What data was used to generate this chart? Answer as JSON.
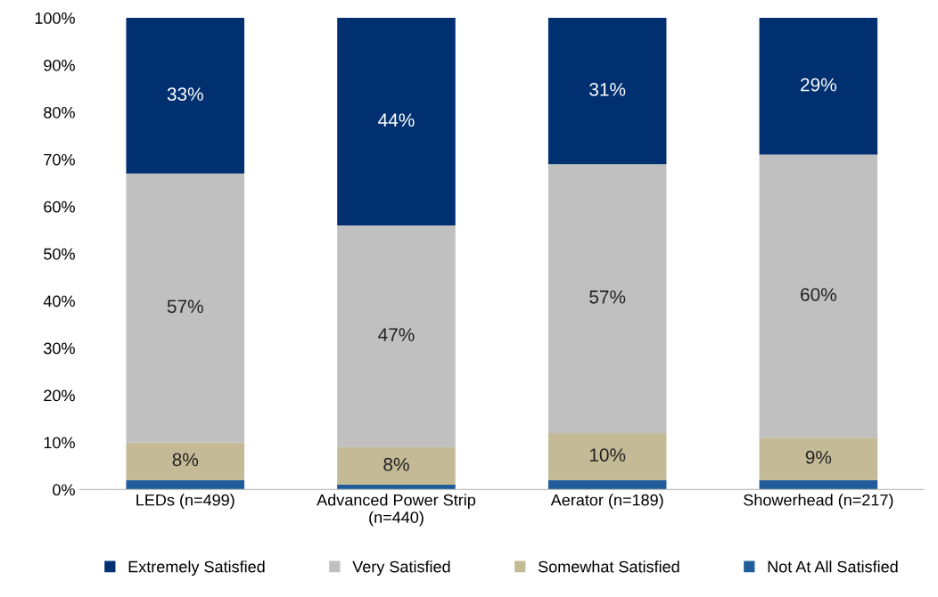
{
  "chart_data": {
    "type": "bar",
    "stacked": true,
    "categories": [
      "LEDs (n=499)",
      "Advanced Power Strip\n(n=440)",
      "Aerator (n=189)",
      "Showerhead (n=217)"
    ],
    "series": [
      {
        "name": "Not At All Satisfied",
        "color": "#1f5c99",
        "values": [
          2,
          1,
          2,
          2
        ],
        "value_labels": [
          null,
          null,
          null,
          null
        ]
      },
      {
        "name": "Somewhat Satisfied",
        "color": "#c4bb96",
        "values": [
          8,
          8,
          10,
          9
        ],
        "value_labels": [
          "8%",
          "8%",
          "10%",
          "9%"
        ]
      },
      {
        "name": "Very Satisfied",
        "color": "#c0c0c0",
        "values": [
          57,
          47,
          57,
          60
        ],
        "value_labels": [
          "57%",
          "47%",
          "57%",
          "60%"
        ]
      },
      {
        "name": "Extremely Satisfied",
        "color": "#003070",
        "values": [
          33,
          44,
          31,
          29
        ],
        "value_labels": [
          "33%",
          "44%",
          "31%",
          "29%"
        ]
      }
    ],
    "ylim": [
      0,
      100
    ],
    "yticks": [
      {
        "value": 0,
        "label": "0%"
      },
      {
        "value": 10,
        "label": "10%"
      },
      {
        "value": 20,
        "label": "20%"
      },
      {
        "value": 30,
        "label": "30%"
      },
      {
        "value": 40,
        "label": "40%"
      },
      {
        "value": 50,
        "label": "50%"
      },
      {
        "value": 60,
        "label": "60%"
      },
      {
        "value": 70,
        "label": "70%"
      },
      {
        "value": 80,
        "label": "80%"
      },
      {
        "value": 90,
        "label": "90%"
      },
      {
        "value": 100,
        "label": "100%"
      }
    ],
    "grid": false,
    "legend": "bottom"
  }
}
